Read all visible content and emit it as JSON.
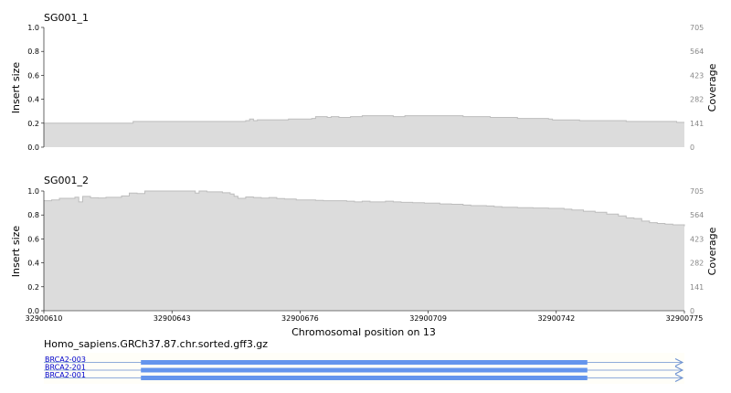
{
  "colors": {
    "coverage_fill": "#dcdcdc",
    "coverage_line": "#bdbdbd",
    "axis": "#000000",
    "right_tick_text": "#888888",
    "track_text": "#0000cc",
    "track_line": "#6a8fd0",
    "exon": "#6495ed",
    "track_bg": "#fffef8"
  },
  "xaxis": {
    "label": "Chromosomal position on 13",
    "ticks": [
      "32900610",
      "32900643",
      "32900676",
      "32900709",
      "32900742",
      "32900775"
    ],
    "tick_values": [
      32900610,
      32900643,
      32900676,
      32900709,
      32900742,
      32900775
    ],
    "range": [
      32900610,
      32900775
    ]
  },
  "annotation": {
    "file": "Homo_sapiens.GRCh37.87.chr.sorted.gff3.gz",
    "tracks": [
      {
        "name": "BRCA2-003",
        "exon": [
          32900635,
          32900750
        ]
      },
      {
        "name": "BRCA2-201",
        "exon": [
          32900635,
          32900750
        ]
      },
      {
        "name": "BRCA2-001",
        "exon": [
          32900635,
          32900750
        ]
      }
    ]
  },
  "chart_data": [
    {
      "type": "area",
      "title": "SG001_1",
      "ylabel": "Insert size",
      "y2label": "Coverage",
      "ylim": [
        0,
        1
      ],
      "yticks": [
        "1.0",
        "0.8",
        "0.6",
        "0.4",
        "0.2",
        "0.0"
      ],
      "y2ticks": [
        "705",
        "564",
        "423",
        "282",
        "141",
        "0"
      ],
      "y2lim": [
        0,
        705
      ],
      "x": [
        32900610,
        32900633,
        32900634,
        32900662,
        32900663,
        32900664,
        32900665,
        32900673,
        32900674,
        32900675,
        32900677,
        32900679,
        32900680,
        32900683,
        32900684,
        32900686,
        32900689,
        32900692,
        32900697,
        32900698,
        32900700,
        32900703,
        32900708,
        32900718,
        32900719,
        32900721,
        32900725,
        32900726,
        32900732,
        32900733,
        32900740,
        32900741,
        32900748,
        32900760,
        32900773,
        32900775
      ],
      "coverage": [
        141,
        151,
        151,
        156,
        165,
        156,
        161,
        165,
        165,
        165,
        165,
        169,
        180,
        175,
        180,
        175,
        180,
        185,
        185,
        185,
        180,
        185,
        185,
        180,
        180,
        180,
        175,
        175,
        169,
        169,
        165,
        160,
        156,
        151,
        146,
        146
      ]
    },
    {
      "type": "area",
      "title": "SG001_2",
      "ylabel": "Insert size",
      "y2label": "Coverage",
      "ylim": [
        0,
        1
      ],
      "yticks": [
        "1.0",
        "0.8",
        "0.6",
        "0.4",
        "0.2",
        "0.0"
      ],
      "y2ticks": [
        "705",
        "564",
        "423",
        "282",
        "141",
        "0"
      ],
      "y2lim": [
        0,
        705
      ],
      "x": [
        32900610,
        32900612,
        32900614,
        32900618,
        32900619,
        32900620,
        32900622,
        32900624,
        32900626,
        32900630,
        32900632,
        32900634,
        32900636,
        32900648,
        32900649,
        32900650,
        32900652,
        32900656,
        32900658,
        32900659,
        32900660,
        32900662,
        32900664,
        32900666,
        32900668,
        32900670,
        32900672,
        32900675,
        32900680,
        32900682,
        32900688,
        32900690,
        32900692,
        32900694,
        32900698,
        32900700,
        32900702,
        32900705,
        32900708,
        32900712,
        32900715,
        32900718,
        32900720,
        32900724,
        32900726,
        32900728,
        32900732,
        32900736,
        32900740,
        32900744,
        32900746,
        32900749,
        32900752,
        32900755,
        32900758,
        32900760,
        32900762,
        32900764,
        32900766,
        32900768,
        32900770,
        32900772,
        32900775
      ],
      "coverage": [
        648,
        653,
        662,
        669,
        641,
        673,
        665,
        664,
        668,
        676,
        693,
        690,
        705,
        705,
        693,
        705,
        700,
        695,
        688,
        674,
        662,
        670,
        667,
        663,
        667,
        661,
        658,
        653,
        650,
        648,
        645,
        641,
        645,
        641,
        645,
        641,
        638,
        636,
        634,
        629,
        627,
        622,
        619,
        617,
        613,
        610,
        607,
        605,
        603,
        598,
        593,
        586,
        580,
        569,
        558,
        547,
        543,
        528,
        519,
        514,
        510,
        506,
        498
      ]
    }
  ]
}
